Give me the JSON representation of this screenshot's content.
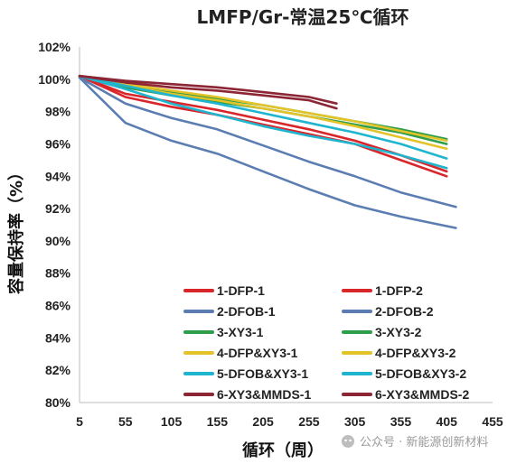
{
  "chart_data": {
    "type": "line",
    "title": "LMFP/Gr-常温25℃循环",
    "xlabel": "循环（周）",
    "ylabel": "容量保持率（%）",
    "xlim": [
      5,
      455
    ],
    "ylim": [
      80,
      102
    ],
    "x_ticks": [
      5,
      55,
      105,
      155,
      205,
      255,
      305,
      355,
      405,
      455
    ],
    "y_ticks": [
      80,
      82,
      84,
      86,
      88,
      90,
      92,
      94,
      96,
      98,
      100,
      102
    ],
    "y_tick_labels": [
      "80%",
      "82%",
      "84%",
      "86%",
      "88%",
      "90%",
      "92%",
      "94%",
      "96%",
      "98%",
      "100%",
      "102%"
    ],
    "legend_position": "bottom-right",
    "grid": false,
    "series": [
      {
        "name": "1-DFP-1",
        "color": "#d9262b",
        "x": [
          5,
          55,
          105,
          155,
          205,
          255,
          305,
          355,
          405
        ],
        "y": [
          100.2,
          98.9,
          98.3,
          97.8,
          97.2,
          96.6,
          96.0,
          95.0,
          94.0
        ]
      },
      {
        "name": "1-DFP-2",
        "color": "#d9262b",
        "x": [
          5,
          55,
          105,
          155,
          205,
          255,
          305,
          355,
          405
        ],
        "y": [
          100.2,
          99.1,
          98.6,
          98.1,
          97.5,
          96.9,
          96.2,
          95.3,
          94.3
        ]
      },
      {
        "name": "2-DFOB-1",
        "color": "#5b7db1",
        "x": [
          5,
          55,
          105,
          155,
          205,
          255,
          305,
          355,
          415
        ],
        "y": [
          100.1,
          97.3,
          96.2,
          95.4,
          94.3,
          93.2,
          92.2,
          91.5,
          90.8
        ]
      },
      {
        "name": "2-DFOB-2",
        "color": "#5b7db1",
        "x": [
          5,
          55,
          105,
          155,
          205,
          255,
          305,
          355,
          415
        ],
        "y": [
          100.1,
          98.5,
          97.6,
          96.9,
          95.9,
          94.9,
          94.0,
          93.0,
          92.1
        ]
      },
      {
        "name": "3-XY3-1",
        "color": "#2f9e4a",
        "x": [
          5,
          55,
          105,
          155,
          205,
          255,
          305,
          355,
          405
        ],
        "y": [
          100.2,
          99.6,
          99.2,
          98.8,
          98.4,
          97.9,
          97.4,
          96.9,
          96.3
        ]
      },
      {
        "name": "3-XY3-2",
        "color": "#2f9e4a",
        "x": [
          5,
          55,
          105,
          155,
          205,
          255,
          305,
          355,
          405
        ],
        "y": [
          100.2,
          99.5,
          99.0,
          98.6,
          98.2,
          97.7,
          97.2,
          96.7,
          96.0
        ]
      },
      {
        "name": "4-DFP&XY3-1",
        "color": "#e4c329",
        "x": [
          5,
          55,
          105,
          155,
          205,
          255,
          305,
          355,
          405
        ],
        "y": [
          100.2,
          99.7,
          99.3,
          98.9,
          98.4,
          97.9,
          97.4,
          96.8,
          96.2
        ]
      },
      {
        "name": "4-DFP&XY3-2",
        "color": "#e4c329",
        "x": [
          5,
          55,
          105,
          155,
          205,
          255,
          305,
          355,
          405
        ],
        "y": [
          100.2,
          99.6,
          99.1,
          98.7,
          98.2,
          97.7,
          97.1,
          96.4,
          95.7
        ]
      },
      {
        "name": "5-DFOB&XY3-1",
        "color": "#1fb5cf",
        "x": [
          5,
          55,
          105,
          155,
          205,
          255,
          305,
          355,
          405
        ],
        "y": [
          100.2,
          99.4,
          98.5,
          97.8,
          97.1,
          96.5,
          96.0,
          95.3,
          94.5
        ]
      },
      {
        "name": "5-DFOB&XY3-2",
        "color": "#1fb5cf",
        "x": [
          5,
          55,
          105,
          155,
          205,
          255,
          305,
          355,
          405
        ],
        "y": [
          100.2,
          99.6,
          99.0,
          98.5,
          97.9,
          97.3,
          96.7,
          96.0,
          95.1
        ]
      },
      {
        "name": "6-XY3&MMDS-1",
        "color": "#8c2534",
        "x": [
          5,
          55,
          105,
          155,
          205,
          255,
          285
        ],
        "y": [
          100.2,
          99.9,
          99.7,
          99.5,
          99.2,
          98.9,
          98.5
        ]
      },
      {
        "name": "6-XY3&MMDS-2",
        "color": "#8c2534",
        "x": [
          5,
          55,
          105,
          155,
          205,
          255,
          285
        ],
        "y": [
          100.2,
          99.8,
          99.5,
          99.3,
          99.0,
          98.7,
          98.2
        ]
      }
    ]
  },
  "watermark": {
    "text": "公众号 · 新能源创新材料"
  }
}
